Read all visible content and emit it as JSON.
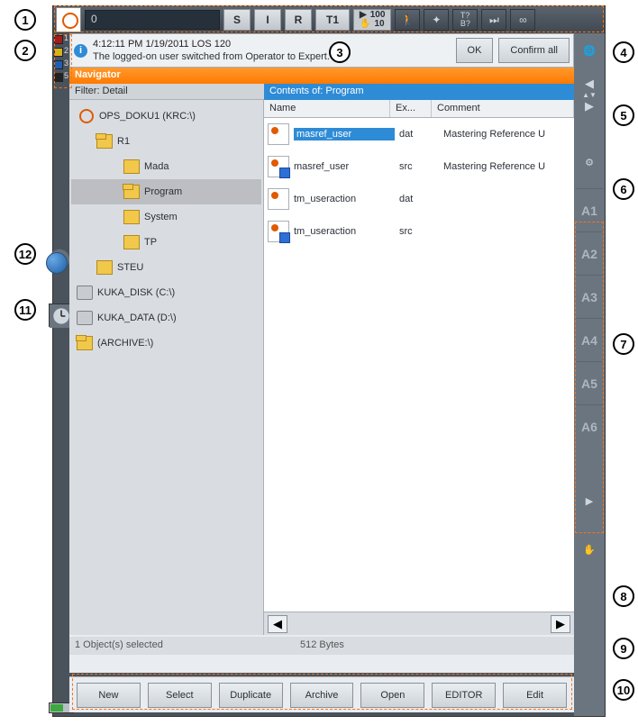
{
  "topbar": {
    "program_slot": "0",
    "buttons": {
      "s": "S",
      "i": "I",
      "r": "R",
      "t1": "T1"
    },
    "speed_top": "100",
    "speed_bottom": "10",
    "tb_label": "T?\nB?",
    "inf_label": "∞"
  },
  "leftstrip": {
    "counts": [
      "1",
      "2",
      "3",
      "5"
    ]
  },
  "message": {
    "timestamp": "4:12:11 PM 1/19/2011 LOS 120",
    "text": "The logged-on user switched from Operator to Expert.",
    "ok": "OK",
    "confirm": "Confirm all"
  },
  "navigator": {
    "title": "Navigator",
    "filter_label": "Filter: Detail",
    "contents_label": "Contents of: Program",
    "columns": {
      "name": "Name",
      "ext": "Ex...",
      "comment": "Comment"
    },
    "tree": {
      "root": "OPS_DOKU1 (KRC:\\)",
      "r1": "R1",
      "mada": "Mada",
      "program": "Program",
      "system": "System",
      "tp": "TP",
      "steu": "STEU",
      "disk": "KUKA_DISK (C:\\)",
      "data": "KUKA_DATA (D:\\)",
      "archive": "(ARCHIVE:\\)"
    },
    "files": [
      {
        "name": "masref_user",
        "ext": "dat",
        "comment": "Mastering Reference U",
        "selected": true,
        "type": "dat"
      },
      {
        "name": "masref_user",
        "ext": "src",
        "comment": "Mastering Reference U",
        "type": "src"
      },
      {
        "name": "tm_useraction",
        "ext": "dat",
        "comment": "",
        "type": "dat"
      },
      {
        "name": "tm_useraction",
        "ext": "src",
        "comment": "",
        "type": "src"
      }
    ],
    "status_left": "1 Object(s) selected",
    "status_right": "512 Bytes"
  },
  "axes": [
    "A1",
    "A2",
    "A3",
    "A4",
    "A5",
    "A6"
  ],
  "bottom": {
    "new": "New",
    "select": "Select",
    "dup": "Duplicate",
    "arch": "Archive",
    "open": "Open",
    "editor": "EDITOR",
    "edit": "Edit"
  },
  "callouts": {
    "1": "1",
    "2": "2",
    "3": "3",
    "4": "4",
    "5": "5",
    "6": "6",
    "7": "7",
    "8": "8",
    "9": "9",
    "10": "10",
    "11": "11",
    "12": "12"
  }
}
